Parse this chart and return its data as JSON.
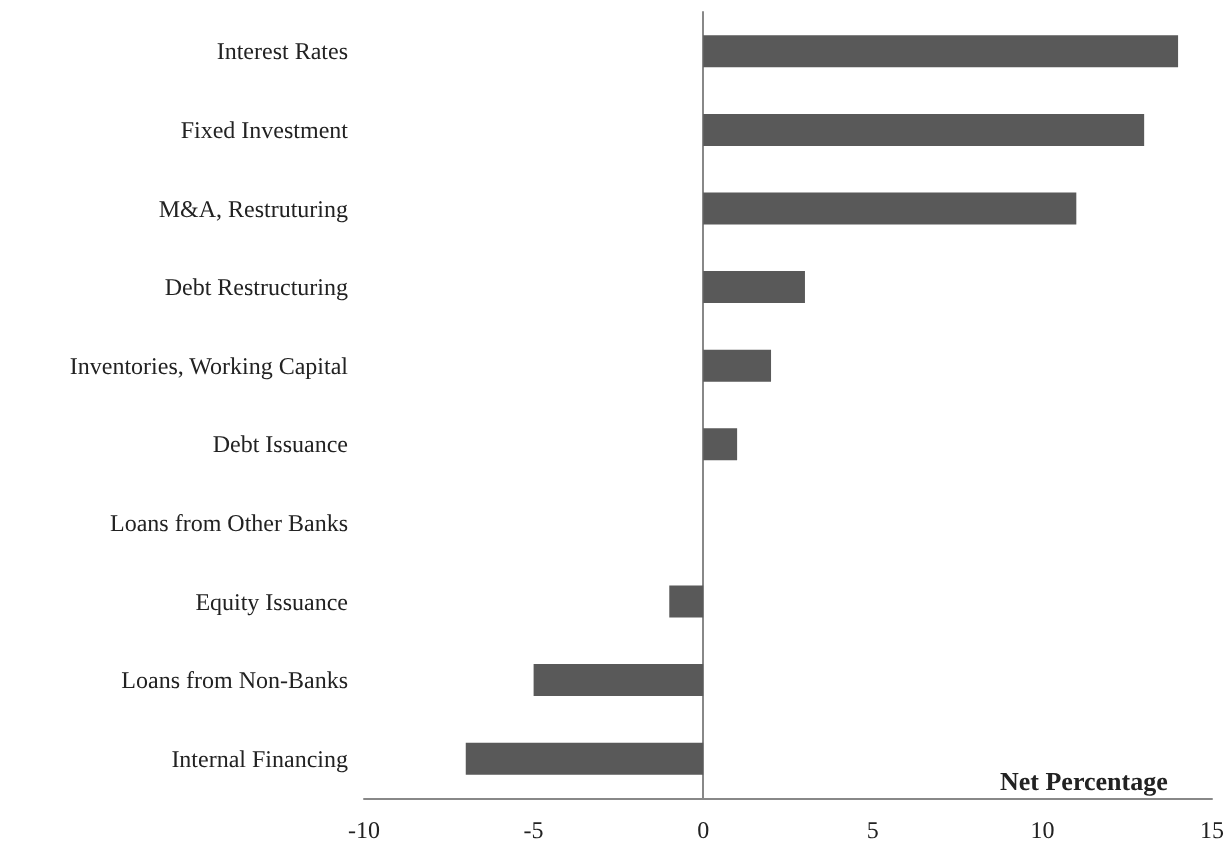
{
  "chart_data": {
    "type": "bar",
    "orientation": "horizontal",
    "xlabel": "Net Percentage",
    "categories": [
      "Interest Rates",
      "Fixed Investment",
      "M&A, Restruturing",
      "Debt Restructuring",
      "Inventories, Working Capital",
      "Debt Issuance",
      "Loans from Other Banks",
      "Equity Issuance",
      "Loans from Non-Banks",
      "Internal Financing"
    ],
    "values": [
      14,
      13,
      11,
      3,
      2,
      1,
      0,
      -1,
      -5,
      -7
    ],
    "color": "#595959",
    "xlim": [
      -10,
      15
    ],
    "xticks": [
      -10,
      -5,
      0,
      5,
      10,
      15
    ]
  }
}
